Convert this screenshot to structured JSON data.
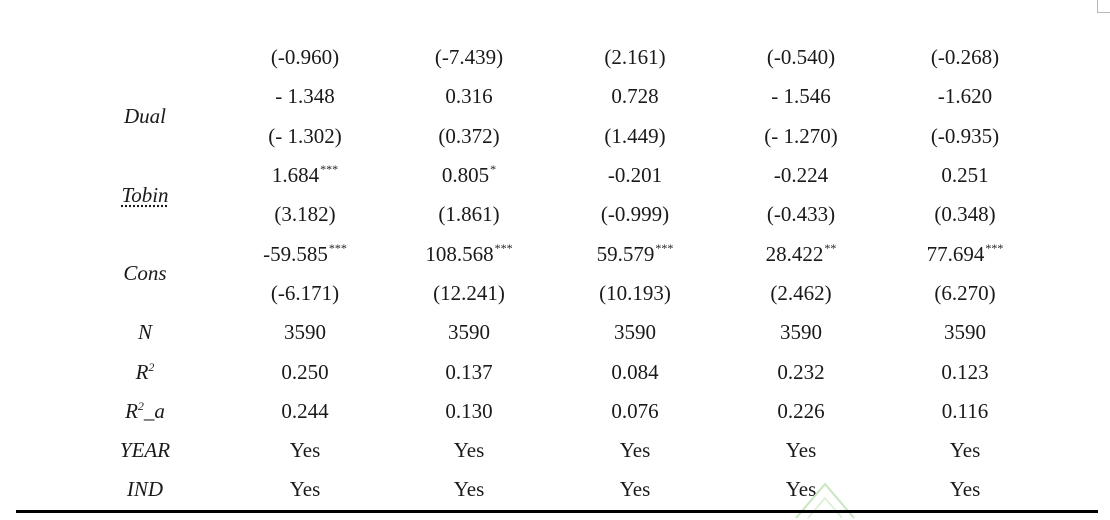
{
  "table": {
    "rows": [
      {
        "var": "",
        "cells": [
          {
            "v": "(-0.960)",
            "s": ""
          },
          {
            "v": "(-7.439)",
            "s": ""
          },
          {
            "v": "(2.161)",
            "s": ""
          },
          {
            "v": "(-0.540)",
            "s": ""
          },
          {
            "v": "(-0.268)",
            "s": ""
          }
        ]
      },
      {
        "var": "Dual",
        "cells": [
          {
            "v": "- 1.348",
            "s": ""
          },
          {
            "v": "0.316",
            "s": ""
          },
          {
            "v": "0.728",
            "s": ""
          },
          {
            "v": "- 1.546",
            "s": ""
          },
          {
            "v": "-1.620",
            "s": ""
          }
        ]
      },
      {
        "var": "",
        "cells": [
          {
            "v": "(- 1.302)",
            "s": ""
          },
          {
            "v": "(0.372)",
            "s": ""
          },
          {
            "v": "(1.449)",
            "s": ""
          },
          {
            "v": "(- 1.270)",
            "s": ""
          },
          {
            "v": "(-0.935)",
            "s": ""
          }
        ]
      },
      {
        "var": "Tobin",
        "cells": [
          {
            "v": "1.684",
            "s": "***"
          },
          {
            "v": "0.805",
            "s": "*"
          },
          {
            "v": "-0.201",
            "s": ""
          },
          {
            "v": "-0.224",
            "s": ""
          },
          {
            "v": "0.251",
            "s": ""
          }
        ]
      },
      {
        "var": "",
        "cells": [
          {
            "v": "(3.182)",
            "s": ""
          },
          {
            "v": "(1.861)",
            "s": ""
          },
          {
            "v": "(-0.999)",
            "s": ""
          },
          {
            "v": "(-0.433)",
            "s": ""
          },
          {
            "v": "(0.348)",
            "s": ""
          }
        ]
      },
      {
        "var": "Cons",
        "cells": [
          {
            "v": "-59.585",
            "s": "***"
          },
          {
            "v": "108.568",
            "s": "***"
          },
          {
            "v": "59.579",
            "s": "***"
          },
          {
            "v": "28.422",
            "s": "**"
          },
          {
            "v": "77.694",
            "s": "***"
          }
        ]
      },
      {
        "var": "",
        "cells": [
          {
            "v": "(-6.171)",
            "s": ""
          },
          {
            "v": "(12.241)",
            "s": ""
          },
          {
            "v": "(10.193)",
            "s": ""
          },
          {
            "v": "(2.462)",
            "s": ""
          },
          {
            "v": "(6.270)",
            "s": ""
          }
        ]
      },
      {
        "var": "N",
        "cells": [
          {
            "v": "3590",
            "s": ""
          },
          {
            "v": "3590",
            "s": ""
          },
          {
            "v": "3590",
            "s": ""
          },
          {
            "v": "3590",
            "s": ""
          },
          {
            "v": "3590",
            "s": ""
          }
        ]
      },
      {
        "var": "R",
        "var_sup": "2",
        "cells": [
          {
            "v": "0.250",
            "s": ""
          },
          {
            "v": "0.137",
            "s": ""
          },
          {
            "v": "0.084",
            "s": ""
          },
          {
            "v": "0.232",
            "s": ""
          },
          {
            "v": "0.123",
            "s": ""
          }
        ]
      },
      {
        "var": "R",
        "var_sup": "2",
        "var_suffix": "_a",
        "cells": [
          {
            "v": "0.244",
            "s": ""
          },
          {
            "v": "0.130",
            "s": ""
          },
          {
            "v": "0.076",
            "s": ""
          },
          {
            "v": "0.226",
            "s": ""
          },
          {
            "v": "0.116",
            "s": ""
          }
        ]
      },
      {
        "var": "YEAR",
        "cells": [
          {
            "v": "Yes",
            "s": ""
          },
          {
            "v": "Yes",
            "s": ""
          },
          {
            "v": "Yes",
            "s": ""
          },
          {
            "v": "Yes",
            "s": ""
          },
          {
            "v": "Yes",
            "s": ""
          }
        ]
      },
      {
        "var": "IND",
        "cells": [
          {
            "v": "Yes",
            "s": ""
          },
          {
            "v": "Yes",
            "s": ""
          },
          {
            "v": "Yes",
            "s": ""
          },
          {
            "v": "Yes",
            "s": ""
          },
          {
            "v": "Yes",
            "s": ""
          }
        ]
      }
    ]
  },
  "colors": {
    "text": "#1a1a1a",
    "rule": "#000000",
    "watermark": "#c8e6c0"
  }
}
